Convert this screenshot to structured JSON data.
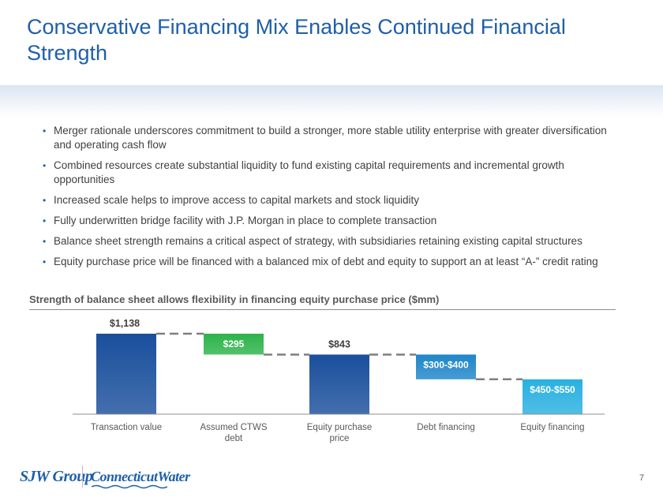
{
  "title": "Conservative Financing Mix Enables Continued Financial Strength",
  "bullets": [
    "Merger rationale underscores commitment to build a stronger, more stable utility enterprise with greater diversification and operating cash flow",
    "Combined resources create substantial liquidity to fund existing capital requirements and incremental growth opportunities",
    "Increased scale helps to improve access to capital markets and stock liquidity",
    "Fully underwritten bridge facility with J.P. Morgan in place to complete transaction",
    "Balance sheet strength remains a critical aspect of strategy, with subsidiaries retaining existing capital structures",
    "Equity purchase price will be financed with a balanced mix of debt and equity to support an at least “A-” credit rating"
  ],
  "chart_data": {
    "type": "bar",
    "subtype": "waterfall",
    "title": "Strength of balance sheet allows flexibility in financing equity purchase price ($mm)",
    "categories": [
      "Transaction value",
      "Assumed CTWS debt",
      "Equity purchase price",
      "Debt financing",
      "Equity financing"
    ],
    "bars": [
      {
        "category": "Transaction value",
        "bottom": 0,
        "top": 1138,
        "label": "$1,138",
        "color": "#1a4f9c",
        "kind": "total"
      },
      {
        "category": "Assumed CTWS debt",
        "bottom": 843,
        "top": 1138,
        "label": "$295",
        "color": "#2db34a",
        "kind": "decrease"
      },
      {
        "category": "Equity purchase price",
        "bottom": 0,
        "top": 843,
        "label": "$843",
        "color": "#1a4f9c",
        "kind": "total"
      },
      {
        "category": "Debt financing",
        "bottom": 493,
        "top": 843,
        "label": "$300-$400",
        "color": "#1f86c8",
        "kind": "decrease"
      },
      {
        "category": "Equity financing",
        "bottom": 0,
        "top": 493,
        "label": "$450-$550",
        "color": "#29b0e0",
        "kind": "decrease"
      }
    ],
    "ylim": [
      0,
      1138
    ],
    "grid": false,
    "legend": "none"
  },
  "footer": {
    "logo_sjw": "SJW Group",
    "logo_ctw": "ConnecticutWater",
    "page_number": "7"
  }
}
